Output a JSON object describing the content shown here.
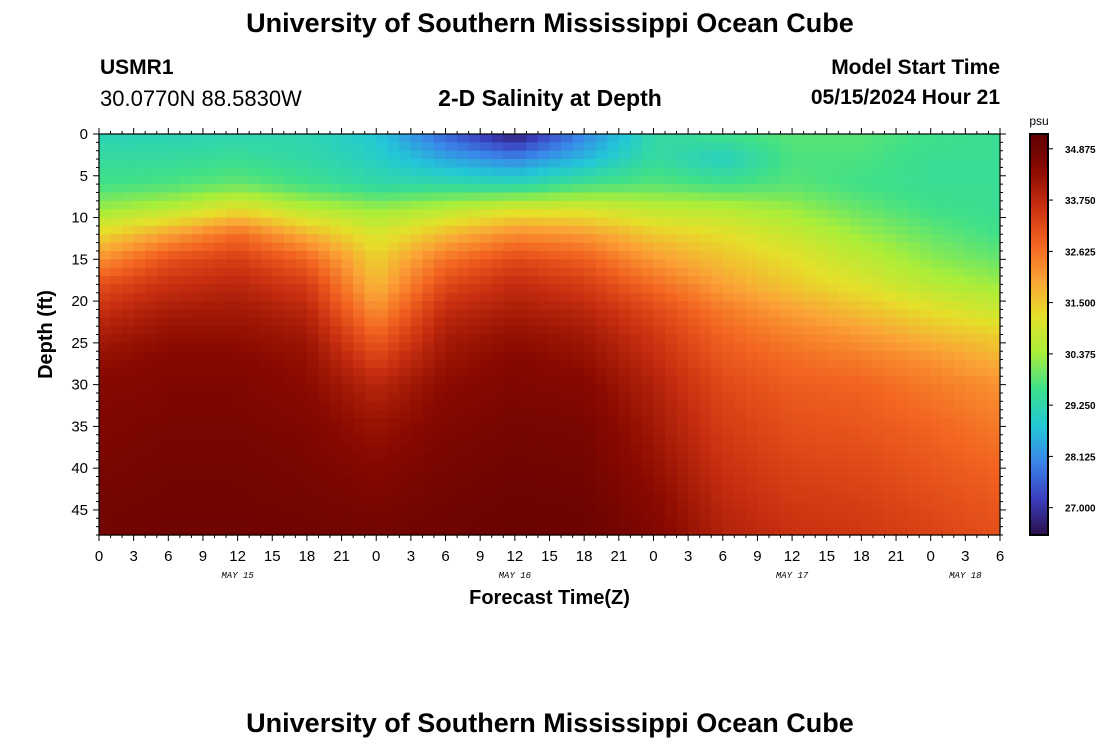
{
  "header": {
    "title": "University of Southern Mississippi Ocean Cube",
    "station_id": "USMR1",
    "coordinates": "30.0770N  88.5830W",
    "plot_title": "2-D Salinity at Depth",
    "model_label": "Model Start Time",
    "model_time": "05/15/2024 Hour 21"
  },
  "footer": {
    "title": "University of Southern Mississippi Ocean Cube"
  },
  "chart_data": {
    "type": "heatmap",
    "title": "2-D Salinity at Depth",
    "xlabel": "Forecast Time(Z)",
    "ylabel": "Depth (ft)",
    "x_ticks": [
      "0",
      "3",
      "6",
      "9",
      "12",
      "15",
      "18",
      "21",
      "0",
      "3",
      "6",
      "9",
      "12",
      "15",
      "18",
      "21",
      "0",
      "3",
      "6",
      "9",
      "12",
      "15",
      "18",
      "21",
      "0",
      "3",
      "6"
    ],
    "day_labels": [
      {
        "label": "MAY 15",
        "at_hour": 12
      },
      {
        "label": "MAY 16",
        "at_hour": 36
      },
      {
        "label": "MAY 17",
        "at_hour": 60
      },
      {
        "label": "MAY 18",
        "at_hour": 75
      }
    ],
    "xlim_hours": [
      0,
      78
    ],
    "y_ticks": [
      "0",
      "5",
      "10",
      "15",
      "20",
      "25",
      "30",
      "35",
      "40",
      "45"
    ],
    "ylim": [
      48,
      0
    ],
    "colorbar": {
      "unit": "psu",
      "min": 26.4,
      "max": 35.2,
      "labels": [
        "34.875",
        "33.750",
        "32.625",
        "31.500",
        "30.375",
        "29.250",
        "28.125",
        "27.000"
      ],
      "colors": [
        "#2a0f4a",
        "#3b3fbf",
        "#3a85e8",
        "#22c8d6",
        "#3ee08a",
        "#a8ee3a",
        "#e5e02a",
        "#fba236",
        "#f26320",
        "#c93010",
        "#8a0a00",
        "#5e0000"
      ]
    },
    "salinity_grid": {
      "description": "Salinity (psu) sampled every 6 forecast hours (rows) at depths in ft (columns)",
      "depths_ft": [
        0,
        3,
        6,
        9,
        12,
        15,
        18,
        21,
        24,
        27,
        30,
        35,
        40,
        45,
        48
      ],
      "hours": [
        0,
        6,
        12,
        18,
        24,
        30,
        36,
        42,
        48,
        54,
        60,
        66,
        72,
        78
      ],
      "values": [
        [
          29.1,
          29.4,
          29.6,
          30.3,
          31.3,
          32.2,
          33.1,
          33.6,
          34.0,
          34.3,
          34.5,
          34.6,
          34.7,
          34.8,
          34.8
        ],
        [
          29.1,
          29.4,
          29.7,
          30.6,
          32.0,
          33.1,
          33.6,
          34.0,
          34.3,
          34.5,
          34.6,
          34.7,
          34.8,
          34.85,
          34.9
        ],
        [
          29.2,
          29.5,
          29.9,
          31.2,
          32.7,
          33.4,
          33.8,
          34.1,
          34.3,
          34.5,
          34.6,
          34.7,
          34.8,
          34.85,
          34.9
        ],
        [
          29.2,
          29.3,
          29.6,
          30.6,
          31.8,
          32.8,
          33.4,
          33.8,
          34.1,
          34.3,
          34.4,
          34.6,
          34.7,
          34.8,
          34.85
        ],
        [
          28.8,
          29.0,
          29.3,
          30.3,
          31.0,
          31.4,
          31.7,
          32.2,
          32.8,
          33.3,
          33.8,
          34.2,
          34.5,
          34.7,
          34.8
        ],
        [
          27.6,
          28.4,
          29.3,
          30.6,
          31.7,
          32.6,
          33.2,
          33.7,
          34.0,
          34.2,
          34.4,
          34.6,
          34.75,
          34.85,
          34.9
        ],
        [
          26.6,
          28.0,
          29.2,
          31.0,
          32.3,
          33.2,
          33.7,
          34.0,
          34.3,
          34.5,
          34.6,
          34.75,
          34.85,
          34.95,
          35.0
        ],
        [
          28.0,
          28.6,
          29.6,
          31.0,
          32.1,
          32.9,
          33.4,
          33.8,
          34.1,
          34.3,
          34.5,
          34.7,
          34.8,
          34.9,
          34.95
        ],
        [
          29.3,
          29.4,
          29.8,
          30.7,
          31.5,
          32.1,
          32.7,
          33.2,
          33.5,
          33.7,
          33.9,
          34.1,
          34.3,
          34.5,
          34.6
        ],
        [
          29.6,
          29.0,
          29.6,
          30.6,
          31.2,
          31.6,
          32.0,
          32.5,
          32.8,
          33.0,
          33.2,
          33.4,
          33.6,
          33.8,
          33.9
        ],
        [
          29.8,
          29.7,
          29.8,
          30.3,
          30.8,
          31.2,
          31.5,
          32.0,
          32.4,
          32.7,
          32.9,
          33.1,
          33.3,
          33.5,
          33.6
        ],
        [
          29.8,
          29.7,
          29.6,
          29.9,
          30.3,
          30.7,
          31.1,
          31.6,
          32.1,
          32.5,
          32.8,
          33.0,
          33.2,
          33.4,
          33.5
        ],
        [
          29.6,
          29.5,
          29.5,
          29.6,
          29.9,
          30.2,
          30.6,
          31.2,
          31.7,
          32.2,
          32.5,
          32.8,
          33.0,
          33.2,
          33.3
        ],
        [
          29.5,
          29.5,
          29.5,
          29.5,
          29.6,
          29.9,
          30.3,
          30.8,
          31.4,
          31.8,
          32.2,
          32.5,
          32.8,
          33.0,
          33.1
        ]
      ]
    }
  }
}
